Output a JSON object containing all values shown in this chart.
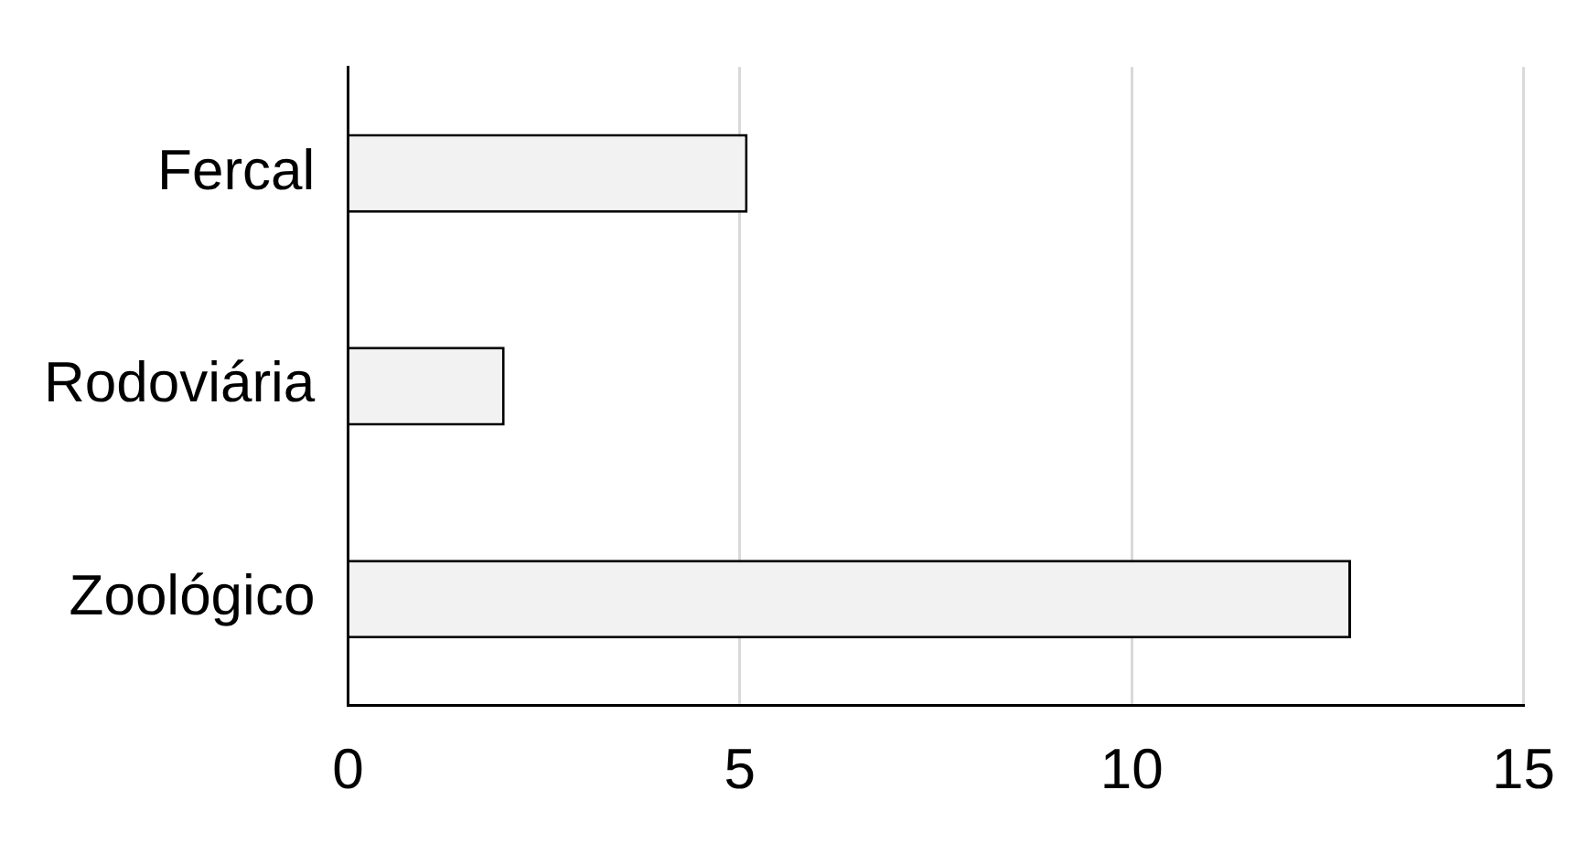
{
  "chart_data": {
    "type": "bar",
    "orientation": "horizontal",
    "categories": [
      "Fercal",
      "Rodoviária",
      "Zoológico"
    ],
    "values": [
      5.1,
      2,
      12.8
    ],
    "color": "#f2f2f2",
    "xlim": [
      0,
      15
    ],
    "xticks": [
      0,
      5,
      10,
      15
    ],
    "grid": "x",
    "legend": false
  }
}
